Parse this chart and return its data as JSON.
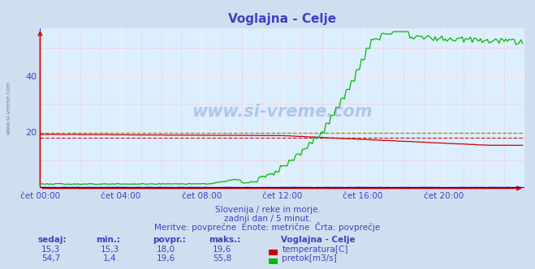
{
  "title": "Voglajna - Celje",
  "bg_color": "#d0dff0",
  "plot_bg_color": "#ddeeff",
  "grid_white_color": "#ffffff",
  "grid_pink_color": "#f0c8c8",
  "xlabel_color": "#4040c0",
  "title_color": "#4040c0",
  "ylim": [
    0,
    57
  ],
  "yticks": [
    20,
    40
  ],
  "xlim": [
    0,
    288
  ],
  "xtick_labels": [
    "čet 00:00",
    "čet 04:00",
    "čet 08:00",
    "čet 12:00",
    "čet 16:00",
    "čet 20:00"
  ],
  "xtick_positions": [
    0,
    48,
    96,
    144,
    192,
    240
  ],
  "temp_color": "#cc0000",
  "flow_color": "#00bb00",
  "level_color": "#0000cc",
  "temp_avg": 18.0,
  "flow_avg": 19.6,
  "subtitle1": "Slovenija / reke in morje.",
  "subtitle2": "zadnji dan / 5 minut.",
  "subtitle3": "Meritve: povprečne  Enote: metrične  Črta: povprečje",
  "legend_title": "Voglajna - Celje",
  "watermark": "www.si-vreme.com",
  "left_label": "www.si-vreme.com",
  "table_headers": [
    "sedaj:",
    "min.:",
    "povpr.:",
    "maks.:"
  ],
  "table_row1": [
    "15,3",
    "15,3",
    "18,0",
    "19,6"
  ],
  "table_row2": [
    "54,7",
    "1,4",
    "19,6",
    "55,8"
  ]
}
